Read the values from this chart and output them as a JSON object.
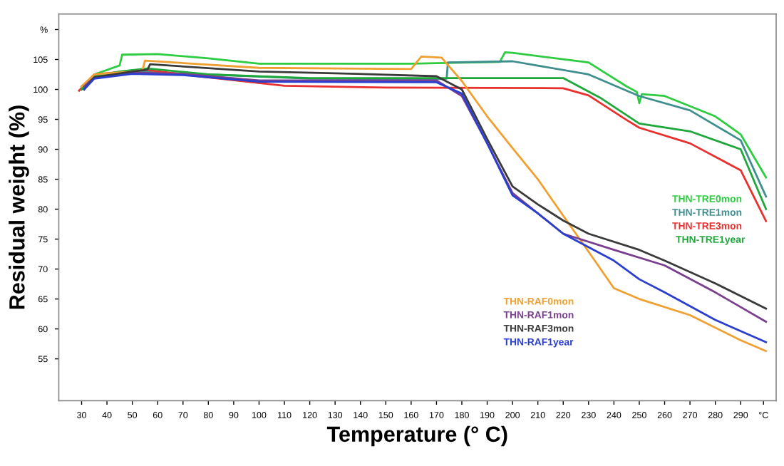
{
  "chart_data": {
    "type": "line",
    "xlabel": "Temperature (° C)",
    "ylabel": "Residual weight (%)",
    "xlim": [
      21,
      304
    ],
    "ylim": [
      48,
      112.6
    ],
    "xticks": [
      30,
      40,
      50,
      60,
      70,
      80,
      90,
      100,
      110,
      120,
      130,
      140,
      150,
      160,
      170,
      180,
      190,
      200,
      210,
      220,
      230,
      240,
      250,
      260,
      270,
      280,
      290,
      {
        "value": 299,
        "label": "°C"
      }
    ],
    "yticks": [
      55,
      60,
      65,
      70,
      75,
      80,
      85,
      90,
      95,
      100,
      105,
      {
        "value": 110,
        "label": "%"
      }
    ],
    "grid": false,
    "legend": false,
    "marker": "none",
    "line_style": "solid",
    "series": [
      {
        "name": "THN-TRE0mon",
        "color": "#2ecc40",
        "x": [
          30,
          35,
          45,
          46,
          60,
          80,
          100,
          160,
          195,
          197,
          200,
          230,
          245,
          249,
          250,
          251,
          260,
          280,
          290,
          300
        ],
        "values": [
          100,
          102.5,
          104,
          105.8,
          105.9,
          105.2,
          104.3,
          104.3,
          104.6,
          106.2,
          106.1,
          104.5,
          100.5,
          99.6,
          97.7,
          99.2,
          98.9,
          95.5,
          92.5,
          85.3
        ]
      },
      {
        "name": "THN-TRE1mon",
        "color": "#3f8f8f",
        "x": [
          30,
          35,
          50,
          80,
          120,
          170,
          174,
          174.5,
          200,
          230,
          245,
          250,
          270,
          290,
          300
        ],
        "values": [
          100.5,
          102.3,
          103,
          102.5,
          101.8,
          101.7,
          101.8,
          104.5,
          104.7,
          102.5,
          99.8,
          98.9,
          96.5,
          91.5,
          82.1
        ]
      },
      {
        "name": "THN-TRE3mon",
        "color": "#e8302e",
        "x": [
          29,
          35,
          55,
          80,
          110,
          150,
          220,
          230,
          245,
          250,
          270,
          290,
          300
        ],
        "values": [
          99.8,
          102.5,
          103.3,
          102,
          100.6,
          100.3,
          100.2,
          99,
          94.9,
          93.6,
          91,
          86.5,
          78
        ]
      },
      {
        "name": "THN-TRE1year",
        "color": "#1fa83a",
        "x": [
          30,
          35,
          45,
          56,
          80,
          120,
          220,
          235,
          250,
          270,
          290,
          300
        ],
        "values": [
          100,
          102.2,
          103,
          103.5,
          102.5,
          101.9,
          101.9,
          98.5,
          94.3,
          93,
          90,
          80
        ]
      },
      {
        "name": "THN-RAF0mon",
        "color": "#f0a030",
        "x": [
          30,
          35,
          50,
          54,
          55,
          100,
          160,
          164,
          172,
          180,
          190,
          200,
          210,
          220,
          230,
          240,
          250,
          270,
          290,
          300
        ],
        "values": [
          100.5,
          102.5,
          103,
          103.2,
          104.8,
          103.6,
          103.4,
          105.5,
          105.3,
          101.4,
          95.5,
          90.2,
          85,
          78.9,
          72.9,
          66.8,
          65,
          62.3,
          58.1,
          56.3
        ]
      },
      {
        "name": "THN-RAF1mon",
        "color": "#7a3f8f",
        "x": [
          31,
          35,
          50,
          70,
          100,
          170,
          180,
          190,
          200,
          220,
          240,
          260,
          280,
          300
        ],
        "values": [
          100.5,
          102,
          102.8,
          102.6,
          101.5,
          101.5,
          98.9,
          91,
          82.7,
          75.9,
          73.2,
          70.6,
          66.1,
          61.2
        ]
      },
      {
        "name": "THN-RAF3mon",
        "color": "#3a3a3a",
        "x": [
          31,
          35,
          50,
          56,
          57,
          100,
          130,
          170,
          180,
          190,
          200,
          210,
          220,
          230,
          250,
          260,
          280,
          300
        ],
        "values": [
          100,
          102,
          103,
          103.3,
          104.2,
          103,
          102.7,
          102.2,
          100,
          91.7,
          83.8,
          80.8,
          78.1,
          75.9,
          73.2,
          71.4,
          67.6,
          63.4
        ]
      },
      {
        "name": "THN-RAF1year",
        "color": "#2a3fd0",
        "x": [
          31,
          35,
          50,
          70,
          100,
          170,
          180,
          190,
          200,
          210,
          220,
          240,
          250,
          260,
          280,
          300
        ],
        "values": [
          100,
          101.8,
          102.6,
          102.4,
          101.3,
          101.2,
          99.3,
          91,
          82.3,
          79.3,
          75.9,
          71.4,
          68.3,
          66.1,
          61.5,
          57.8
        ]
      }
    ]
  }
}
